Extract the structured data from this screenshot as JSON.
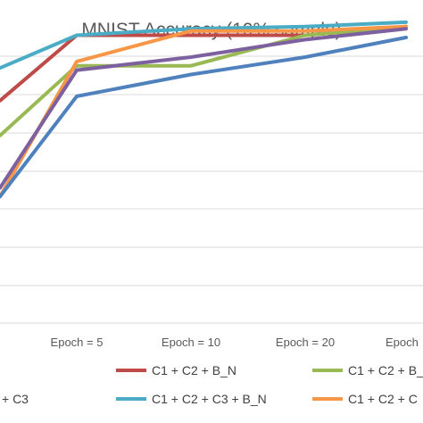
{
  "chart_data": {
    "type": "line",
    "title": "MNIST Accuracy (10% sample)",
    "categories": [
      "",
      "Epoch = 5",
      "Epoch = 10",
      "Epoch = 20",
      "Epoch"
    ],
    "ylim": [
      0,
      7
    ],
    "grid": true,
    "legend_position": "bottom",
    "series": [
      {
        "name": "C1 + C2 + B_N",
        "color": "#be4b48",
        "values": [
          5.1,
          6.6,
          6.6,
          6.6,
          6.8
        ]
      },
      {
        "name": "C1 + C2 + B_",
        "color": "#98b954",
        "values": [
          4.3,
          5.9,
          5.9,
          6.6,
          6.8
        ]
      },
      {
        "name": "C1 + C2 + C3 + B_N",
        "color": "#4bacc6",
        "values": [
          5.85,
          6.6,
          6.75,
          6.8,
          6.9
        ]
      },
      {
        "name": "C1 + C2 + C",
        "color": "#f79646",
        "values": [
          2.9,
          6.0,
          6.7,
          6.7,
          6.8
        ]
      },
      {
        "name": "",
        "color": "#7d60a0",
        "values": [
          3.1,
          5.8,
          6.1,
          6.5,
          6.75
        ]
      },
      {
        "name": "+ C3",
        "color": "#4f81bd",
        "values": [
          2.9,
          5.2,
          5.7,
          6.1,
          6.55
        ]
      }
    ]
  }
}
